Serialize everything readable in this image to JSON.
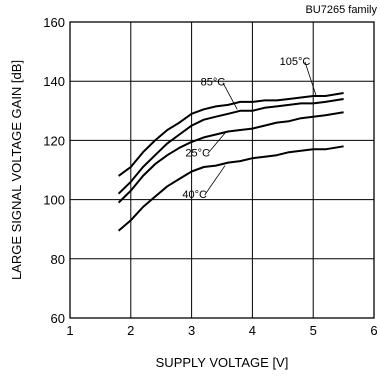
{
  "chart_data": {
    "type": "line",
    "family_label": "BU7265 family",
    "xlabel": "SUPPLY VOLTAGE [V]",
    "ylabel": "LARGE SIGNAL VOLTAGE GAIN [dB]",
    "xlim": [
      1,
      6
    ],
    "ylim": [
      60,
      160
    ],
    "xticks": [
      1,
      2,
      3,
      4,
      5,
      6
    ],
    "yticks": [
      60,
      80,
      100,
      120,
      140,
      160
    ],
    "grid": true,
    "series": [
      {
        "name": "40°C",
        "x": [
          1.8,
          2.0,
          2.2,
          2.4,
          2.6,
          2.8,
          3.0,
          3.2,
          3.4,
          3.6,
          3.8,
          4.0,
          4.2,
          4.4,
          4.6,
          4.8,
          5.0,
          5.2,
          5.5
        ],
        "y": [
          89.5,
          93,
          97.5,
          101,
          104.5,
          107,
          109.5,
          111,
          111.5,
          112.5,
          113,
          114,
          114.5,
          115,
          116,
          116.5,
          117,
          117,
          118
        ]
      },
      {
        "name": "25°C",
        "x": [
          1.8,
          2.0,
          2.2,
          2.4,
          2.6,
          2.8,
          3.0,
          3.2,
          3.4,
          3.6,
          3.8,
          4.0,
          4.2,
          4.4,
          4.6,
          4.8,
          5.0,
          5.2,
          5.5
        ],
        "y": [
          99,
          103,
          108,
          112,
          115,
          117.5,
          119.5,
          121,
          122,
          123,
          123.5,
          124,
          125,
          126,
          126.5,
          127.5,
          128,
          128.5,
          129.5
        ]
      },
      {
        "name": "85°C",
        "x": [
          1.8,
          2.0,
          2.2,
          2.4,
          2.6,
          2.8,
          3.0,
          3.2,
          3.4,
          3.6,
          3.8,
          4.0,
          4.2,
          4.4,
          4.6,
          4.8,
          5.0,
          5.2,
          5.5
        ],
        "y": [
          102,
          106,
          111,
          115,
          119,
          122,
          125,
          127,
          128,
          129,
          130,
          130,
          131,
          131.5,
          132,
          132.5,
          132.5,
          133,
          134
        ]
      },
      {
        "name": "105°C",
        "x": [
          1.8,
          2.0,
          2.2,
          2.4,
          2.6,
          2.8,
          3.0,
          3.2,
          3.4,
          3.6,
          3.8,
          4.0,
          4.2,
          4.4,
          4.6,
          4.8,
          5.0,
          5.2,
          5.5
        ],
        "y": [
          108,
          111,
          116,
          120,
          123.5,
          126,
          129,
          130.5,
          131.5,
          132,
          133,
          133,
          133.5,
          133.5,
          134,
          134.5,
          135,
          135,
          136
        ]
      }
    ]
  }
}
